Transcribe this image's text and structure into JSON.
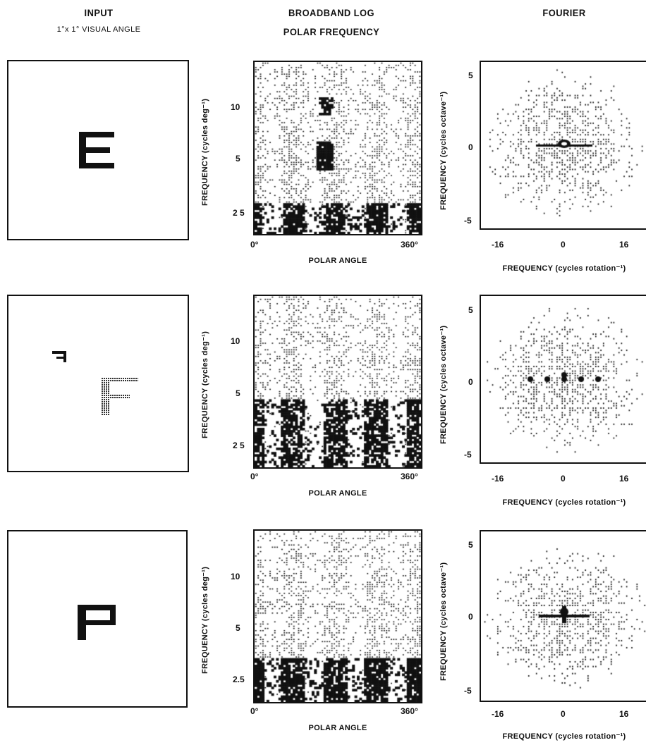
{
  "headers": {
    "input_title": "INPUT",
    "input_sub": "1°x 1° VISUAL ANGLE",
    "polar_title_line1": "BROADBAND LOG",
    "polar_title_line2": "POLAR FREQUENCY",
    "fourier_title": "FOURIER"
  },
  "rows": [
    {
      "letter": "E",
      "polar": {
        "y_ticks": [
          "10",
          "5",
          "2 5"
        ],
        "x_ticks": [
          "0°",
          "360°"
        ],
        "xlabel": "POLAR ANGLE",
        "ylabel": "FREQUENCY (cycles deg⁻¹)"
      },
      "fourier": {
        "y_ticks": [
          "5",
          "0",
          "-5"
        ],
        "x_ticks": [
          "-16",
          "0",
          "16"
        ],
        "xlabel": "FREQUENCY (cycles rotation⁻¹)",
        "ylabel": "FREQUENCY (cycles octave⁻¹)"
      }
    },
    {
      "letter": "F",
      "polar": {
        "y_ticks": [
          "10",
          "5",
          "2 5"
        ],
        "x_ticks": [
          "0°",
          "360°"
        ],
        "xlabel": "POLAR ANGLE",
        "ylabel": "FREQUENCY (cycles deg⁻¹)"
      },
      "fourier": {
        "y_ticks": [
          "5",
          "0",
          "-5"
        ],
        "x_ticks": [
          "-16",
          "0",
          "16"
        ],
        "xlabel": "FREQUENCY (cycles rotation⁻¹)",
        "ylabel": "FREQUENCY (cycles octave⁻¹)"
      }
    },
    {
      "letter": "P",
      "polar": {
        "y_ticks": [
          "10",
          "5",
          "2.5"
        ],
        "x_ticks": [
          "0°",
          "360°"
        ],
        "xlabel": "POLAR ANGLE",
        "ylabel": "FREQUENCY (cycles deg⁻¹)"
      },
      "fourier": {
        "y_ticks": [
          "5",
          "0",
          "-5"
        ],
        "x_ticks": [
          "-16",
          "0",
          "16"
        ],
        "xlabel": "FREQUENCY (cycles rotation⁻¹)",
        "ylabel": "FREQUENCY (cycles octave⁻¹)"
      }
    }
  ]
}
